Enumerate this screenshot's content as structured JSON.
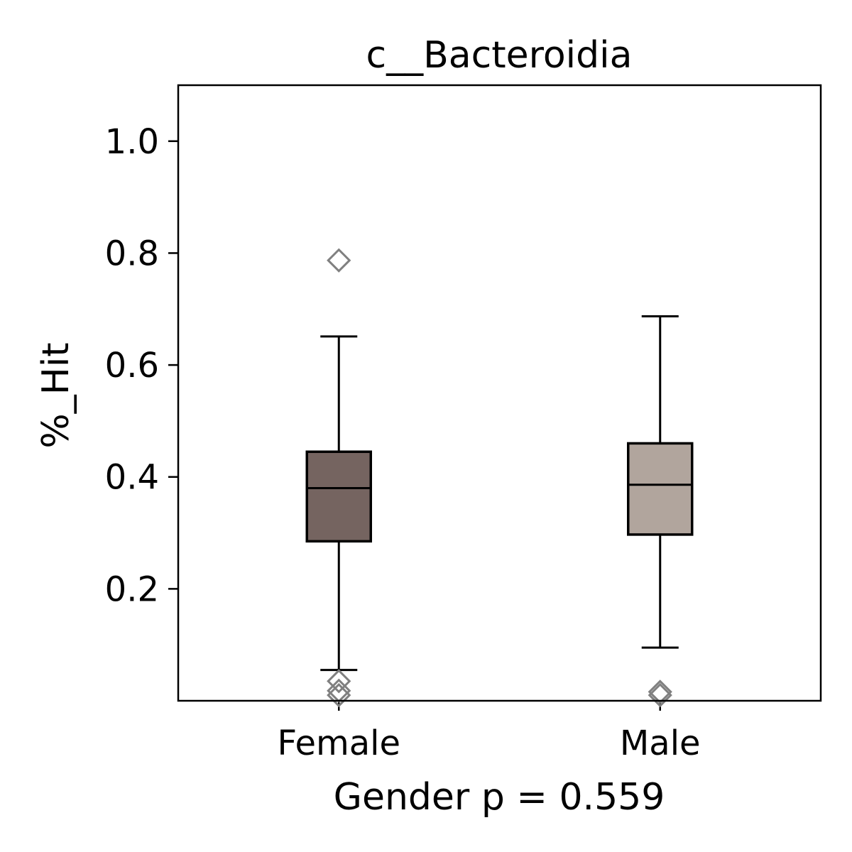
{
  "chart_data": {
    "type": "box",
    "title": "c__Bacteroidia",
    "xlabel": "Gender p = 0.559",
    "ylabel": "%_Hit",
    "ylim": [
      0.0,
      1.1
    ],
    "yticks": [
      0.2,
      0.4,
      0.6,
      0.8,
      1.0
    ],
    "ytick_labels": [
      "0.2",
      "0.4",
      "0.6",
      "0.8",
      "1.0"
    ],
    "categories": [
      "Female",
      "Male"
    ],
    "boxes": [
      {
        "category": "Female",
        "color": "#756460",
        "whisker_low": 0.055,
        "q1": 0.285,
        "median": 0.38,
        "q3": 0.445,
        "whisker_high": 0.651,
        "outliers": [
          0.787,
          0.035,
          0.018,
          0.01
        ]
      },
      {
        "category": "Male",
        "color": "#b1a59d",
        "whisker_low": 0.095,
        "q1": 0.297,
        "median": 0.386,
        "q3": 0.46,
        "whisker_high": 0.687,
        "outliers": [
          0.016,
          0.01
        ]
      }
    ],
    "grid": false,
    "legend": "none",
    "outlier_color": "#808080"
  }
}
